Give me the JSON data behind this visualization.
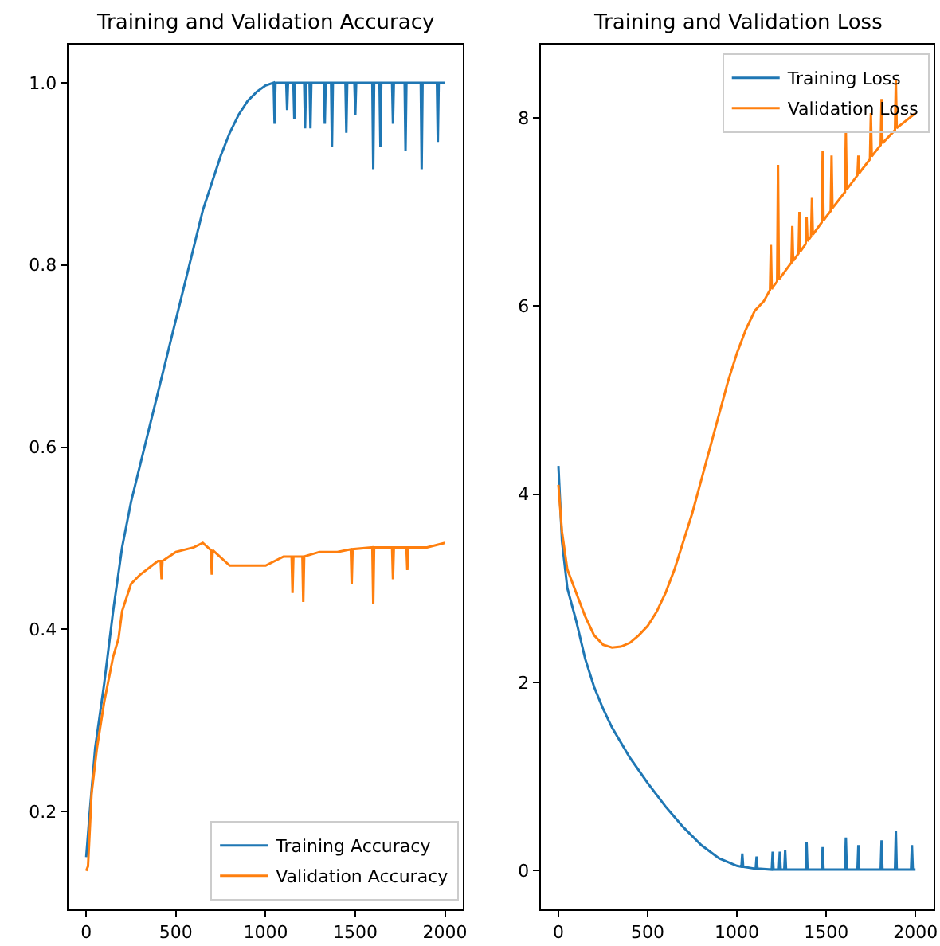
{
  "chart_data": [
    {
      "type": "line",
      "title": "Training and Validation Accuracy",
      "xlim": [
        -100,
        2100
      ],
      "ylim": [
        0.093,
        1.042
      ],
      "xticks": [
        0,
        500,
        1000,
        1500,
        2000
      ],
      "yticks": [
        0.2,
        0.4,
        0.6,
        0.8,
        {
          "value": 1,
          "label": "1.0"
        }
      ],
      "grid": false,
      "legend": "bottom right",
      "series": [
        {
          "name": "Training Accuracy",
          "color": "#1f77b4",
          "x": [
            0,
            20,
            50,
            100,
            150,
            200,
            250,
            300,
            350,
            400,
            450,
            500,
            550,
            600,
            650,
            700,
            750,
            800,
            850,
            900,
            950,
            1000,
            1045,
            1050,
            1055,
            1115,
            1120,
            1125,
            1155,
            1160,
            1165,
            1215,
            1220,
            1225,
            1245,
            1250,
            1255,
            1325,
            1330,
            1335,
            1365,
            1370,
            1375,
            1445,
            1450,
            1455,
            1495,
            1500,
            1505,
            1595,
            1600,
            1605,
            1635,
            1640,
            1645,
            1705,
            1710,
            1715,
            1775,
            1780,
            1785,
            1865,
            1870,
            1875,
            1955,
            1960,
            1965,
            2000
          ],
          "values": [
            0.15,
            0.2,
            0.27,
            0.34,
            0.42,
            0.49,
            0.54,
            0.58,
            0.62,
            0.66,
            0.7,
            0.74,
            0.78,
            0.82,
            0.86,
            0.89,
            0.92,
            0.945,
            0.965,
            0.98,
            0.99,
            0.997,
            1.0,
            0.955,
            1.0,
            1.0,
            0.97,
            1.0,
            1.0,
            0.96,
            1.0,
            1.0,
            0.95,
            1.0,
            1.0,
            0.95,
            1.0,
            1.0,
            0.955,
            1.0,
            1.0,
            0.93,
            1.0,
            1.0,
            0.945,
            1.0,
            1.0,
            0.965,
            1.0,
            1.0,
            0.905,
            1.0,
            1.0,
            0.93,
            1.0,
            1.0,
            0.955,
            1.0,
            1.0,
            0.925,
            1.0,
            1.0,
            0.905,
            1.0,
            1.0,
            0.935,
            1.0,
            1.0
          ]
        },
        {
          "name": "Validation Accuracy",
          "color": "#ff7f0e",
          "x": [
            0,
            10,
            30,
            60,
            100,
            150,
            180,
            200,
            250,
            300,
            400,
            415,
            420,
            425,
            500,
            600,
            650,
            695,
            700,
            705,
            800,
            900,
            1000,
            1100,
            1145,
            1150,
            1155,
            1205,
            1210,
            1215,
            1300,
            1400,
            1475,
            1480,
            1485,
            1595,
            1600,
            1605,
            1705,
            1710,
            1715,
            1785,
            1790,
            1795,
            1900,
            2000
          ],
          "values": [
            0.135,
            0.14,
            0.22,
            0.27,
            0.32,
            0.37,
            0.39,
            0.42,
            0.45,
            0.46,
            0.475,
            0.475,
            0.455,
            0.475,
            0.485,
            0.49,
            0.495,
            0.487,
            0.46,
            0.487,
            0.47,
            0.47,
            0.47,
            0.48,
            0.48,
            0.44,
            0.48,
            0.48,
            0.43,
            0.48,
            0.485,
            0.485,
            0.488,
            0.45,
            0.488,
            0.49,
            0.428,
            0.49,
            0.49,
            0.455,
            0.49,
            0.49,
            0.465,
            0.49,
            0.49,
            0.495
          ]
        }
      ]
    },
    {
      "type": "line",
      "title": "Training and Validation Loss",
      "xlim": [
        -100,
        2100
      ],
      "ylim": [
        -0.41,
        8.78
      ],
      "xticks": [
        0,
        500,
        1000,
        1500,
        2000
      ],
      "yticks": [
        0,
        2,
        4,
        6,
        8
      ],
      "grid": false,
      "legend": "top right",
      "series": [
        {
          "name": "Training Loss",
          "color": "#1f77b4",
          "x": [
            0,
            20,
            50,
            100,
            150,
            200,
            250,
            300,
            400,
            500,
            600,
            700,
            800,
            900,
            1000,
            1025,
            1030,
            1035,
            1100,
            1105,
            1110,
            1115,
            1195,
            1200,
            1205,
            1235,
            1240,
            1245,
            1265,
            1270,
            1275,
            1385,
            1390,
            1395,
            1475,
            1480,
            1485,
            1605,
            1610,
            1615,
            1675,
            1680,
            1685,
            1805,
            1810,
            1815,
            1885,
            1890,
            1895,
            1975,
            1980,
            1985,
            2000
          ],
          "values": [
            4.3,
            3.5,
            3.0,
            2.65,
            2.25,
            1.95,
            1.72,
            1.52,
            1.2,
            0.93,
            0.68,
            0.46,
            0.27,
            0.13,
            0.05,
            0.04,
            0.18,
            0.04,
            0.02,
            0.02,
            0.15,
            0.02,
            0.01,
            0.2,
            0.01,
            0.01,
            0.2,
            0.01,
            0.01,
            0.22,
            0.01,
            0.01,
            0.3,
            0.01,
            0.01,
            0.25,
            0.01,
            0.01,
            0.35,
            0.01,
            0.01,
            0.27,
            0.01,
            0.01,
            0.32,
            0.01,
            0.01,
            0.42,
            0.01,
            0.01,
            0.27,
            0.01,
            0.01
          ]
        },
        {
          "name": "Validation Loss",
          "color": "#ff7f0e",
          "x": [
            0,
            20,
            50,
            100,
            150,
            200,
            250,
            300,
            350,
            400,
            450,
            500,
            550,
            600,
            650,
            700,
            750,
            800,
            850,
            900,
            950,
            1000,
            1050,
            1100,
            1150,
            1185,
            1190,
            1195,
            1200,
            1225,
            1230,
            1235,
            1300,
            1305,
            1310,
            1315,
            1345,
            1350,
            1355,
            1385,
            1390,
            1395,
            1400,
            1415,
            1420,
            1425,
            1475,
            1480,
            1485,
            1500,
            1525,
            1530,
            1535,
            1600,
            1605,
            1610,
            1615,
            1675,
            1680,
            1685,
            1700,
            1745,
            1750,
            1755,
            1800,
            1805,
            1810,
            1815,
            1885,
            1890,
            1895,
            1900,
            2000
          ],
          "values": [
            4.1,
            3.6,
            3.2,
            2.95,
            2.7,
            2.5,
            2.4,
            2.37,
            2.38,
            2.42,
            2.5,
            2.6,
            2.75,
            2.95,
            3.2,
            3.5,
            3.8,
            4.15,
            4.5,
            4.85,
            5.2,
            5.5,
            5.75,
            5.95,
            6.05,
            6.17,
            6.65,
            6.18,
            6.2,
            6.26,
            7.5,
            6.28,
            6.45,
            6.46,
            6.85,
            6.48,
            6.56,
            7.0,
            6.58,
            6.66,
            6.95,
            6.69,
            6.7,
            6.74,
            7.15,
            6.76,
            6.89,
            7.65,
            6.91,
            6.95,
            7.01,
            7.6,
            7.04,
            7.2,
            7.21,
            7.85,
            7.24,
            7.39,
            7.6,
            7.41,
            7.45,
            7.56,
            8.05,
            7.59,
            7.7,
            7.71,
            8.2,
            7.73,
            7.87,
            8.4,
            7.89,
            7.9,
            8.05
          ]
        }
      ]
    }
  ]
}
